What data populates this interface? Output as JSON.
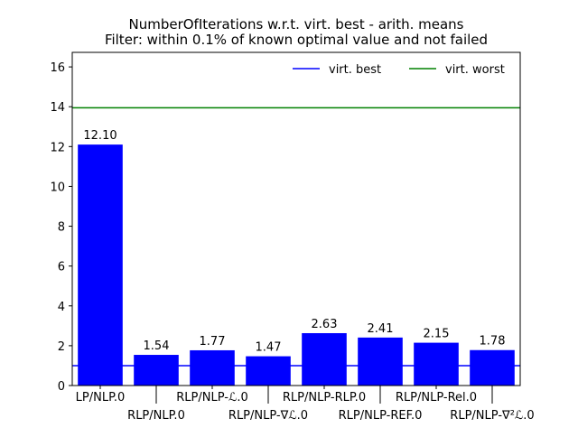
{
  "chart_data": {
    "type": "bar",
    "title": "NumberOfIterations w.r.t. virt. best - arith. means",
    "subtitle": "Filter: within 0.1% of known optimal value and not failed",
    "categories": [
      "LP/NLP.0",
      "RLP/NLP.0",
      "RLP/NLP-ℒ.0",
      "RLP/NLP-∇ℒ.0",
      "RLP/NLP-RLP.0",
      "RLP/NLP-REF.0",
      "RLP/NLP-Rel.0",
      "RLP/NLP-∇²ℒ.0"
    ],
    "values": [
      12.1,
      1.54,
      1.77,
      1.47,
      2.63,
      2.41,
      2.15,
      1.78
    ],
    "data_labels": [
      "12.10",
      "1.54",
      "1.77",
      "1.47",
      "2.63",
      "2.41",
      "2.15",
      "1.78"
    ],
    "ylim": [
      0,
      16.73
    ],
    "yticks": [
      0,
      2,
      4,
      6,
      8,
      10,
      12,
      14,
      16
    ],
    "reference_lines": [
      {
        "name": "virt. best",
        "value": 1.0,
        "color": "#0000ff"
      },
      {
        "name": "virt. worst",
        "value": 13.95,
        "color": "#008000"
      }
    ],
    "bar_color": "#0000ff",
    "legend_placement": "top-right",
    "grid": false
  }
}
